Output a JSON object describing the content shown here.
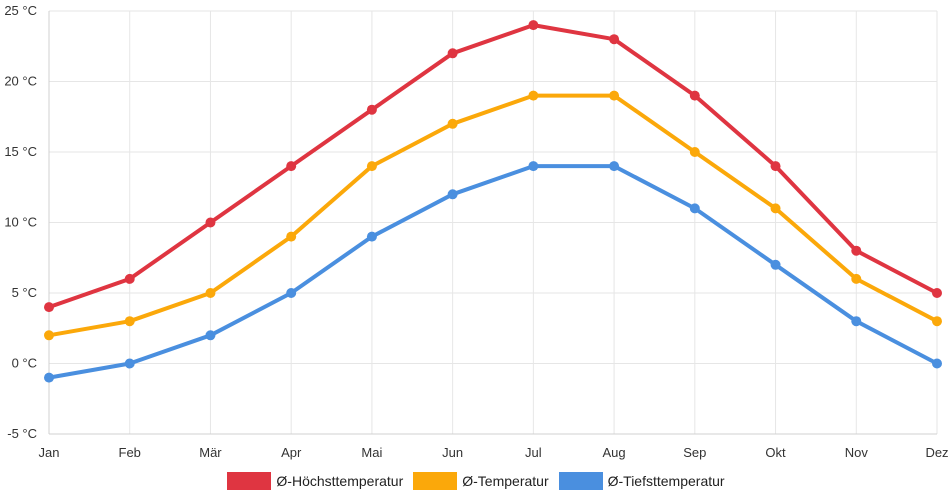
{
  "chart_data": {
    "type": "line",
    "title": "",
    "xlabel": "",
    "ylabel": "",
    "categories": [
      "Jan",
      "Feb",
      "Mär",
      "Apr",
      "Mai",
      "Jun",
      "Jul",
      "Aug",
      "Sep",
      "Okt",
      "Nov",
      "Dez"
    ],
    "ylim": [
      -5,
      25
    ],
    "yticks": [
      25,
      20,
      15,
      10,
      5,
      0,
      -5
    ],
    "ytick_labels": [
      "25 °C",
      "20 °C",
      "15 °C",
      "10 °C",
      "5 °C",
      "0 °C",
      "-5 °C"
    ],
    "grid": true,
    "legend_position": "bottom-center",
    "series": [
      {
        "name": "Ø-Höchsttemperatur",
        "color": "#df3541",
        "values": [
          4,
          6,
          10,
          14,
          18,
          22,
          24,
          23,
          19,
          14,
          8,
          5
        ]
      },
      {
        "name": "Ø-Temperatur",
        "color": "#fba80a",
        "values": [
          2,
          3,
          5,
          9,
          14,
          17,
          19,
          19,
          15,
          11,
          6,
          3
        ]
      },
      {
        "name": "Ø-Tiefsttemperatur",
        "color": "#4a8fdf",
        "values": [
          -1,
          0,
          2,
          5,
          9,
          12,
          14,
          14,
          11,
          7,
          3,
          0
        ]
      }
    ]
  }
}
